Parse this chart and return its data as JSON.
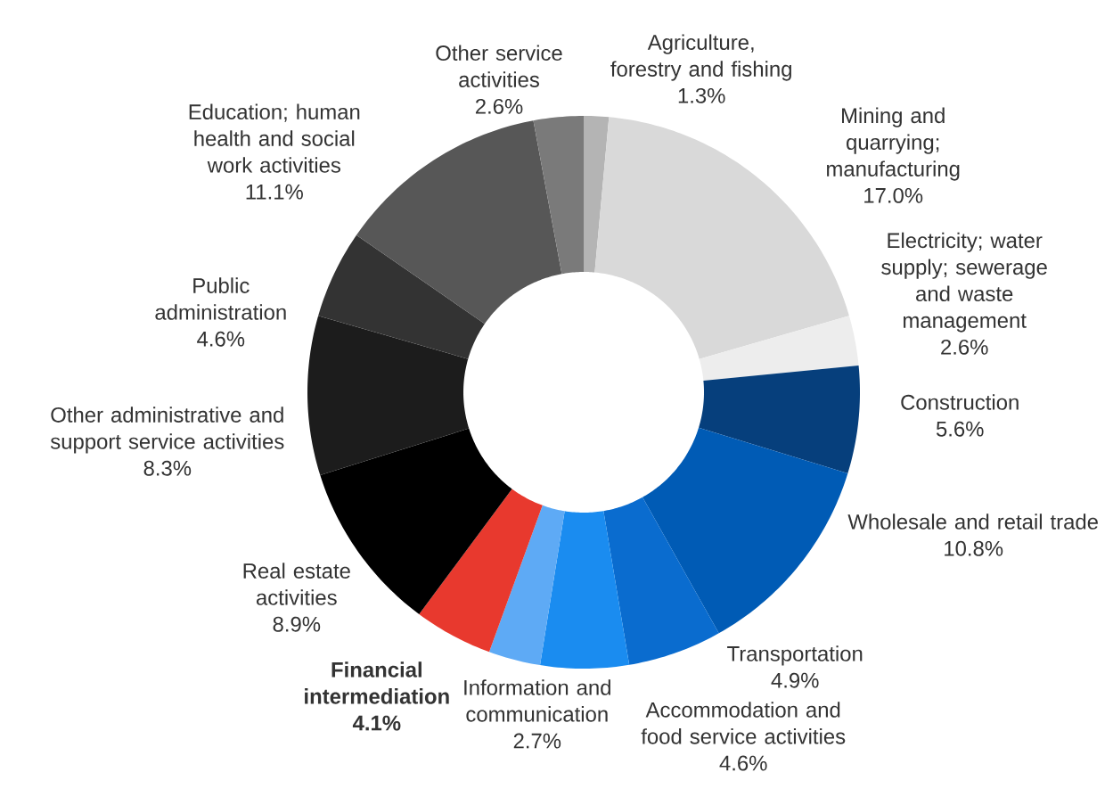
{
  "chart_data": {
    "type": "donut",
    "categories": [
      "Agriculture, forestry and fishing",
      "Mining and quarrying; manufacturing",
      "Electricity; water supply; sewerage and waste management",
      "Construction",
      "Wholesale and retail trade",
      "Transportation",
      "Accommodation and food service activities",
      "Information and communication",
      "**Financial intermediation**",
      "Real estate activities",
      "Other administrative and support service activities",
      "Public administration",
      "Education; human health and social work activities",
      "Other service activities"
    ],
    "values": [
      1.3,
      17.0,
      2.6,
      5.6,
      10.8,
      4.9,
      4.6,
      2.7,
      4.1,
      8.9,
      8.3,
      4.6,
      11.1,
      2.6
    ],
    "colors": [
      "#b4b4b4",
      "#d9d9d9",
      "#ededed",
      "#063f7c",
      "#005bb5",
      "#0a6ccf",
      "#1a8cf0",
      "#5eaaf5",
      "#e8392e",
      "#000000",
      "#1c1c1c",
      "#333333",
      "#575757",
      "#7a7a7a"
    ],
    "value_labels": [
      "1.3%",
      "17.0%",
      "2.6%",
      "5.6%",
      "10.8%",
      "4.9%",
      "4.6%",
      "2.7%",
      "**4.1%**",
      "8.9%",
      "8.3%",
      "4.6%",
      "11.1%",
      "2.6%"
    ]
  }
}
